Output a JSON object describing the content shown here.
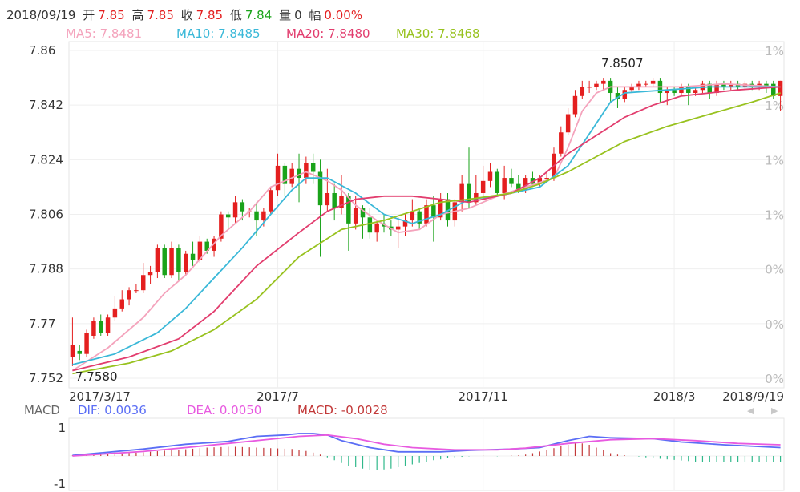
{
  "header": {
    "date": "2018/09/19",
    "open_label": "开",
    "open": "7.85",
    "high_label": "高",
    "high": "7.85",
    "close_label": "收",
    "close": "7.85",
    "low_label": "低",
    "low": "7.84",
    "vol_label": "量",
    "vol": "0",
    "chg_label": "幅",
    "chg": "0.00%"
  },
  "ma_legend": {
    "ma5": "MA5: 7.8481",
    "ma10": "MA10: 7.8485",
    "ma20": "MA20: 7.8480",
    "ma30": "MA30: 7.8468"
  },
  "macd_legend": {
    "title": "MACD",
    "dif": "DIF: 0.0036",
    "dea": "DEA: 0.0050",
    "macd": "MACD: -0.0028"
  },
  "colors": {
    "up": "#e41f1f",
    "down": "#1aa31a",
    "ma5": "#f4a3bc",
    "ma10": "#3ab8d8",
    "ma20": "#e23d6e",
    "ma30": "#98c21f",
    "dif": "#5b6ef5",
    "dea": "#e85ae0",
    "macd_up": "#c23838",
    "macd_down": "#2fb88a"
  },
  "nav": {
    "left_icon": "triangle-left-icon",
    "right_icon": "triangle-right-icon"
  },
  "chart_data": {
    "type": "candlestick",
    "x_tick_labels": [
      "2017/3/17",
      "2017/7",
      "2017/11",
      "2018/3",
      "2018/9/19"
    ],
    "y_tick_labels": [
      "7.86",
      "7.842",
      "7.824",
      "7.806",
      "7.788",
      "7.77",
      "7.752"
    ],
    "y_right_labels": [
      "1%",
      "1%",
      "1%",
      "1%",
      "0%",
      "0%",
      "0%"
    ],
    "ylim": [
      7.752,
      7.86
    ],
    "annotations": {
      "max": "7.8507",
      "min": "7.7580"
    },
    "candles": [
      [
        7.759,
        7.763,
        7.756,
        7.772
      ],
      [
        7.761,
        7.76,
        7.758,
        7.763
      ],
      [
        7.76,
        7.767,
        7.759,
        7.768
      ],
      [
        7.766,
        7.771,
        7.765,
        7.772
      ],
      [
        7.771,
        7.767,
        7.766,
        7.773
      ],
      [
        7.767,
        7.772,
        7.766,
        7.773
      ],
      [
        7.772,
        7.775,
        7.771,
        7.779
      ],
      [
        7.775,
        7.778,
        7.774,
        7.781
      ],
      [
        7.778,
        7.781,
        7.776,
        7.782
      ],
      [
        7.781,
        7.781,
        7.78,
        7.783
      ],
      [
        7.781,
        7.786,
        7.78,
        7.79
      ],
      [
        7.786,
        7.787,
        7.783,
        7.789
      ],
      [
        7.787,
        7.795,
        7.785,
        7.796
      ],
      [
        7.795,
        7.786,
        7.785,
        7.796
      ],
      [
        7.786,
        7.795,
        7.785,
        7.797
      ],
      [
        7.795,
        7.787,
        7.784,
        7.796
      ],
      [
        7.787,
        7.793,
        7.786,
        7.794
      ],
      [
        7.793,
        7.791,
        7.789,
        7.797
      ],
      [
        7.791,
        7.797,
        7.79,
        7.799
      ],
      [
        7.797,
        7.794,
        7.793,
        7.798
      ],
      [
        7.794,
        7.798,
        7.792,
        7.799
      ],
      [
        7.798,
        7.806,
        7.797,
        7.807
      ],
      [
        7.806,
        7.805,
        7.801,
        7.807
      ],
      [
        7.805,
        7.81,
        7.803,
        7.812
      ],
      [
        7.81,
        7.807,
        7.804,
        7.811
      ],
      [
        7.807,
        7.807,
        7.805,
        7.808
      ],
      [
        7.807,
        7.804,
        7.799,
        7.81
      ],
      [
        7.804,
        7.807,
        7.802,
        7.808
      ],
      [
        7.807,
        7.814,
        7.806,
        7.815
      ],
      [
        7.814,
        7.822,
        7.812,
        7.826
      ],
      [
        7.822,
        7.816,
        7.812,
        7.823
      ],
      [
        7.816,
        7.821,
        7.815,
        7.823
      ],
      [
        7.821,
        7.818,
        7.81,
        7.826
      ],
      [
        7.818,
        7.823,
        7.816,
        7.825
      ],
      [
        7.823,
        7.82,
        7.816,
        7.826
      ],
      [
        7.82,
        7.809,
        7.792,
        7.824
      ],
      [
        7.809,
        7.813,
        7.807,
        7.821
      ],
      [
        7.813,
        7.808,
        7.804,
        7.816
      ],
      [
        7.808,
        7.812,
        7.806,
        7.819
      ],
      [
        7.812,
        7.803,
        7.794,
        7.813
      ],
      [
        7.803,
        7.808,
        7.801,
        7.812
      ],
      [
        7.808,
        7.805,
        7.798,
        7.809
      ],
      [
        7.805,
        7.8,
        7.798,
        7.808
      ],
      [
        7.8,
        7.803,
        7.797,
        7.804
      ],
      [
        7.803,
        7.802,
        7.8,
        7.806
      ],
      [
        7.802,
        7.801,
        7.799,
        7.804
      ],
      [
        7.801,
        7.802,
        7.795,
        7.805
      ],
      [
        7.802,
        7.804,
        7.799,
        7.806
      ],
      [
        7.804,
        7.807,
        7.802,
        7.811
      ],
      [
        7.807,
        7.803,
        7.801,
        7.808
      ],
      [
        7.803,
        7.809,
        7.802,
        7.811
      ],
      [
        7.809,
        7.805,
        7.797,
        7.812
      ],
      [
        7.805,
        7.811,
        7.804,
        7.813
      ],
      [
        7.811,
        7.804,
        7.802,
        7.813
      ],
      [
        7.804,
        7.81,
        7.802,
        7.811
      ],
      [
        7.81,
        7.816,
        7.807,
        7.819
      ],
      [
        7.816,
        7.81,
        7.808,
        7.828
      ],
      [
        7.81,
        7.813,
        7.809,
        7.819
      ],
      [
        7.813,
        7.817,
        7.812,
        7.822
      ],
      [
        7.817,
        7.82,
        7.815,
        7.823
      ],
      [
        7.82,
        7.813,
        7.812,
        7.821
      ],
      [
        7.813,
        7.818,
        7.811,
        7.822
      ],
      [
        7.818,
        7.816,
        7.815,
        7.821
      ],
      [
        7.816,
        7.814,
        7.813,
        7.819
      ],
      [
        7.814,
        7.818,
        7.813,
        7.819
      ],
      [
        7.818,
        7.816,
        7.815,
        7.82
      ],
      [
        7.816,
        7.818,
        7.815,
        7.819
      ],
      [
        7.818,
        7.818,
        7.817,
        7.82
      ],
      [
        7.818,
        7.826,
        7.817,
        7.828
      ],
      [
        7.826,
        7.833,
        7.825,
        7.835
      ],
      [
        7.833,
        7.839,
        7.832,
        7.841
      ],
      [
        7.839,
        7.845,
        7.838,
        7.847
      ],
      [
        7.845,
        7.848,
        7.844,
        7.85
      ],
      [
        7.848,
        7.848,
        7.846,
        7.85
      ],
      [
        7.848,
        7.849,
        7.847,
        7.85
      ],
      [
        7.849,
        7.85,
        7.847,
        7.851
      ],
      [
        7.85,
        7.846,
        7.843,
        7.851
      ],
      [
        7.846,
        7.844,
        7.841,
        7.848
      ],
      [
        7.844,
        7.847,
        7.843,
        7.848
      ],
      [
        7.847,
        7.848,
        7.846,
        7.849
      ],
      [
        7.848,
        7.849,
        7.847,
        7.85
      ],
      [
        7.849,
        7.849,
        7.848,
        7.85
      ],
      [
        7.849,
        7.85,
        7.848,
        7.851
      ],
      [
        7.85,
        7.846,
        7.843,
        7.851
      ],
      [
        7.846,
        7.847,
        7.842,
        7.848
      ],
      [
        7.847,
        7.846,
        7.845,
        7.848
      ],
      [
        7.846,
        7.848,
        7.845,
        7.849
      ],
      [
        7.848,
        7.846,
        7.842,
        7.849
      ],
      [
        7.846,
        7.847,
        7.845,
        7.848
      ],
      [
        7.847,
        7.849,
        7.846,
        7.85
      ],
      [
        7.849,
        7.846,
        7.844,
        7.85
      ],
      [
        7.846,
        7.849,
        7.845,
        7.85
      ],
      [
        7.849,
        7.848,
        7.847,
        7.85
      ],
      [
        7.848,
        7.849,
        7.847,
        7.85
      ],
      [
        7.849,
        7.848,
        7.847,
        7.85
      ],
      [
        7.848,
        7.849,
        7.847,
        7.85
      ],
      [
        7.849,
        7.848,
        7.847,
        7.85
      ],
      [
        7.848,
        7.849,
        7.847,
        7.85
      ],
      [
        7.849,
        7.848,
        7.846,
        7.85
      ],
      [
        7.849,
        7.845,
        7.844,
        7.85
      ],
      [
        7.845,
        7.85,
        7.84,
        7.85
      ]
    ],
    "ma_series": [
      {
        "name": "MA5",
        "points": [
          [
            0,
            7.7545
          ],
          [
            5,
            7.762
          ],
          [
            10,
            7.772
          ],
          [
            13,
            7.78
          ],
          [
            16,
            7.786
          ],
          [
            21,
            7.799
          ],
          [
            25,
            7.807
          ],
          [
            28,
            7.815
          ],
          [
            31,
            7.818
          ],
          [
            33,
            7.82
          ],
          [
            36,
            7.817
          ],
          [
            38,
            7.814
          ],
          [
            40,
            7.809
          ],
          [
            43,
            7.804
          ],
          [
            46,
            7.8
          ],
          [
            49,
            7.801
          ],
          [
            52,
            7.806
          ],
          [
            56,
            7.808
          ],
          [
            60,
            7.812
          ],
          [
            64,
            7.815
          ],
          [
            68,
            7.818
          ],
          [
            70,
            7.828
          ],
          [
            72,
            7.84
          ],
          [
            74,
            7.846
          ],
          [
            76,
            7.848
          ],
          [
            80,
            7.848
          ],
          [
            86,
            7.848
          ],
          [
            92,
            7.849
          ],
          [
            100,
            7.848
          ]
        ]
      },
      {
        "name": "MA10",
        "points": [
          [
            0,
            7.7565
          ],
          [
            6,
            7.76
          ],
          [
            12,
            7.767
          ],
          [
            16,
            7.775
          ],
          [
            20,
            7.785
          ],
          [
            24,
            7.795
          ],
          [
            28,
            7.806
          ],
          [
            31,
            7.814
          ],
          [
            33,
            7.818
          ],
          [
            36,
            7.818
          ],
          [
            40,
            7.813
          ],
          [
            44,
            7.806
          ],
          [
            48,
            7.803
          ],
          [
            52,
            7.806
          ],
          [
            56,
            7.811
          ],
          [
            60,
            7.812
          ],
          [
            66,
            7.815
          ],
          [
            70,
            7.822
          ],
          [
            72,
            7.829
          ],
          [
            74,
            7.836
          ],
          [
            76,
            7.843
          ],
          [
            78,
            7.846
          ],
          [
            84,
            7.847
          ],
          [
            90,
            7.848
          ],
          [
            100,
            7.848
          ]
        ]
      },
      {
        "name": "MA20",
        "points": [
          [
            0,
            7.7545
          ],
          [
            8,
            7.759
          ],
          [
            15,
            7.765
          ],
          [
            20,
            7.774
          ],
          [
            26,
            7.789
          ],
          [
            32,
            7.8
          ],
          [
            36,
            7.807
          ],
          [
            40,
            7.811
          ],
          [
            44,
            7.812
          ],
          [
            48,
            7.812
          ],
          [
            52,
            7.811
          ],
          [
            56,
            7.81
          ],
          [
            62,
            7.813
          ],
          [
            66,
            7.818
          ],
          [
            70,
            7.826
          ],
          [
            74,
            7.832
          ],
          [
            78,
            7.838
          ],
          [
            82,
            7.842
          ],
          [
            86,
            7.845
          ],
          [
            90,
            7.846
          ],
          [
            94,
            7.847
          ],
          [
            100,
            7.848
          ]
        ]
      },
      {
        "name": "MA30",
        "points": [
          [
            0,
            7.7535
          ],
          [
            8,
            7.757
          ],
          [
            14,
            7.761
          ],
          [
            20,
            7.768
          ],
          [
            26,
            7.778
          ],
          [
            32,
            7.792
          ],
          [
            38,
            7.801
          ],
          [
            44,
            7.804
          ],
          [
            48,
            7.807
          ],
          [
            52,
            7.81
          ],
          [
            56,
            7.811
          ],
          [
            62,
            7.813
          ],
          [
            66,
            7.816
          ],
          [
            70,
            7.82
          ],
          [
            74,
            7.825
          ],
          [
            78,
            7.83
          ],
          [
            84,
            7.835
          ],
          [
            90,
            7.839
          ],
          [
            96,
            7.843
          ],
          [
            100,
            7.846
          ]
        ]
      }
    ],
    "macd": {
      "ylim": [
        -1,
        1
      ],
      "y_tick_labels": [
        "1",
        "-1"
      ],
      "dif": [
        [
          0,
          0.02
        ],
        [
          10,
          0.25
        ],
        [
          16,
          0.42
        ],
        [
          22,
          0.52
        ],
        [
          26,
          0.7
        ],
        [
          30,
          0.75
        ],
        [
          32,
          0.8
        ],
        [
          34,
          0.8
        ],
        [
          36,
          0.75
        ],
        [
          38,
          0.55
        ],
        [
          42,
          0.3
        ],
        [
          46,
          0.15
        ],
        [
          52,
          0.15
        ],
        [
          56,
          0.2
        ],
        [
          62,
          0.25
        ],
        [
          66,
          0.3
        ],
        [
          70,
          0.55
        ],
        [
          73,
          0.7
        ],
        [
          76,
          0.65
        ],
        [
          82,
          0.62
        ],
        [
          86,
          0.5
        ],
        [
          92,
          0.4
        ],
        [
          100,
          0.3
        ]
      ],
      "dea": [
        [
          0,
          0.0
        ],
        [
          10,
          0.16
        ],
        [
          16,
          0.3
        ],
        [
          22,
          0.45
        ],
        [
          28,
          0.6
        ],
        [
          32,
          0.7
        ],
        [
          36,
          0.75
        ],
        [
          40,
          0.62
        ],
        [
          44,
          0.42
        ],
        [
          48,
          0.3
        ],
        [
          54,
          0.22
        ],
        [
          60,
          0.22
        ],
        [
          64,
          0.28
        ],
        [
          70,
          0.45
        ],
        [
          76,
          0.58
        ],
        [
          82,
          0.62
        ],
        [
          88,
          0.55
        ],
        [
          94,
          0.45
        ],
        [
          100,
          0.4
        ]
      ],
      "hist": [
        0.02,
        0.04,
        0.05,
        0.06,
        0.07,
        0.08,
        0.09,
        0.1,
        0.11,
        0.12,
        0.13,
        0.15,
        0.17,
        0.19,
        0.2,
        0.22,
        0.24,
        0.26,
        0.28,
        0.3,
        0.31,
        0.32,
        0.33,
        0.33,
        0.32,
        0.31,
        0.3,
        0.29,
        0.28,
        0.27,
        0.26,
        0.25,
        0.22,
        0.18,
        0.12,
        0.05,
        -0.05,
        -0.15,
        -0.25,
        -0.35,
        -0.4,
        -0.45,
        -0.5,
        -0.5,
        -0.48,
        -0.45,
        -0.4,
        -0.35,
        -0.3,
        -0.25,
        -0.2,
        -0.15,
        -0.12,
        -0.08,
        -0.05,
        -0.03,
        -0.01,
        0.0,
        0.01,
        0.0,
        -0.01,
        0.0,
        0.01,
        0.02,
        0.05,
        0.1,
        0.16,
        0.22,
        0.28,
        0.35,
        0.4,
        0.45,
        0.45,
        0.4,
        0.3,
        0.2,
        0.1,
        0.05,
        0.02,
        0.0,
        -0.02,
        -0.05,
        -0.08,
        -0.1,
        -0.12,
        -0.14,
        -0.16,
        -0.18,
        -0.2,
        -0.2,
        -0.2,
        -0.2,
        -0.2,
        -0.2,
        -0.2,
        -0.2,
        -0.2,
        -0.2,
        -0.2,
        -0.2,
        -0.2
      ]
    }
  }
}
